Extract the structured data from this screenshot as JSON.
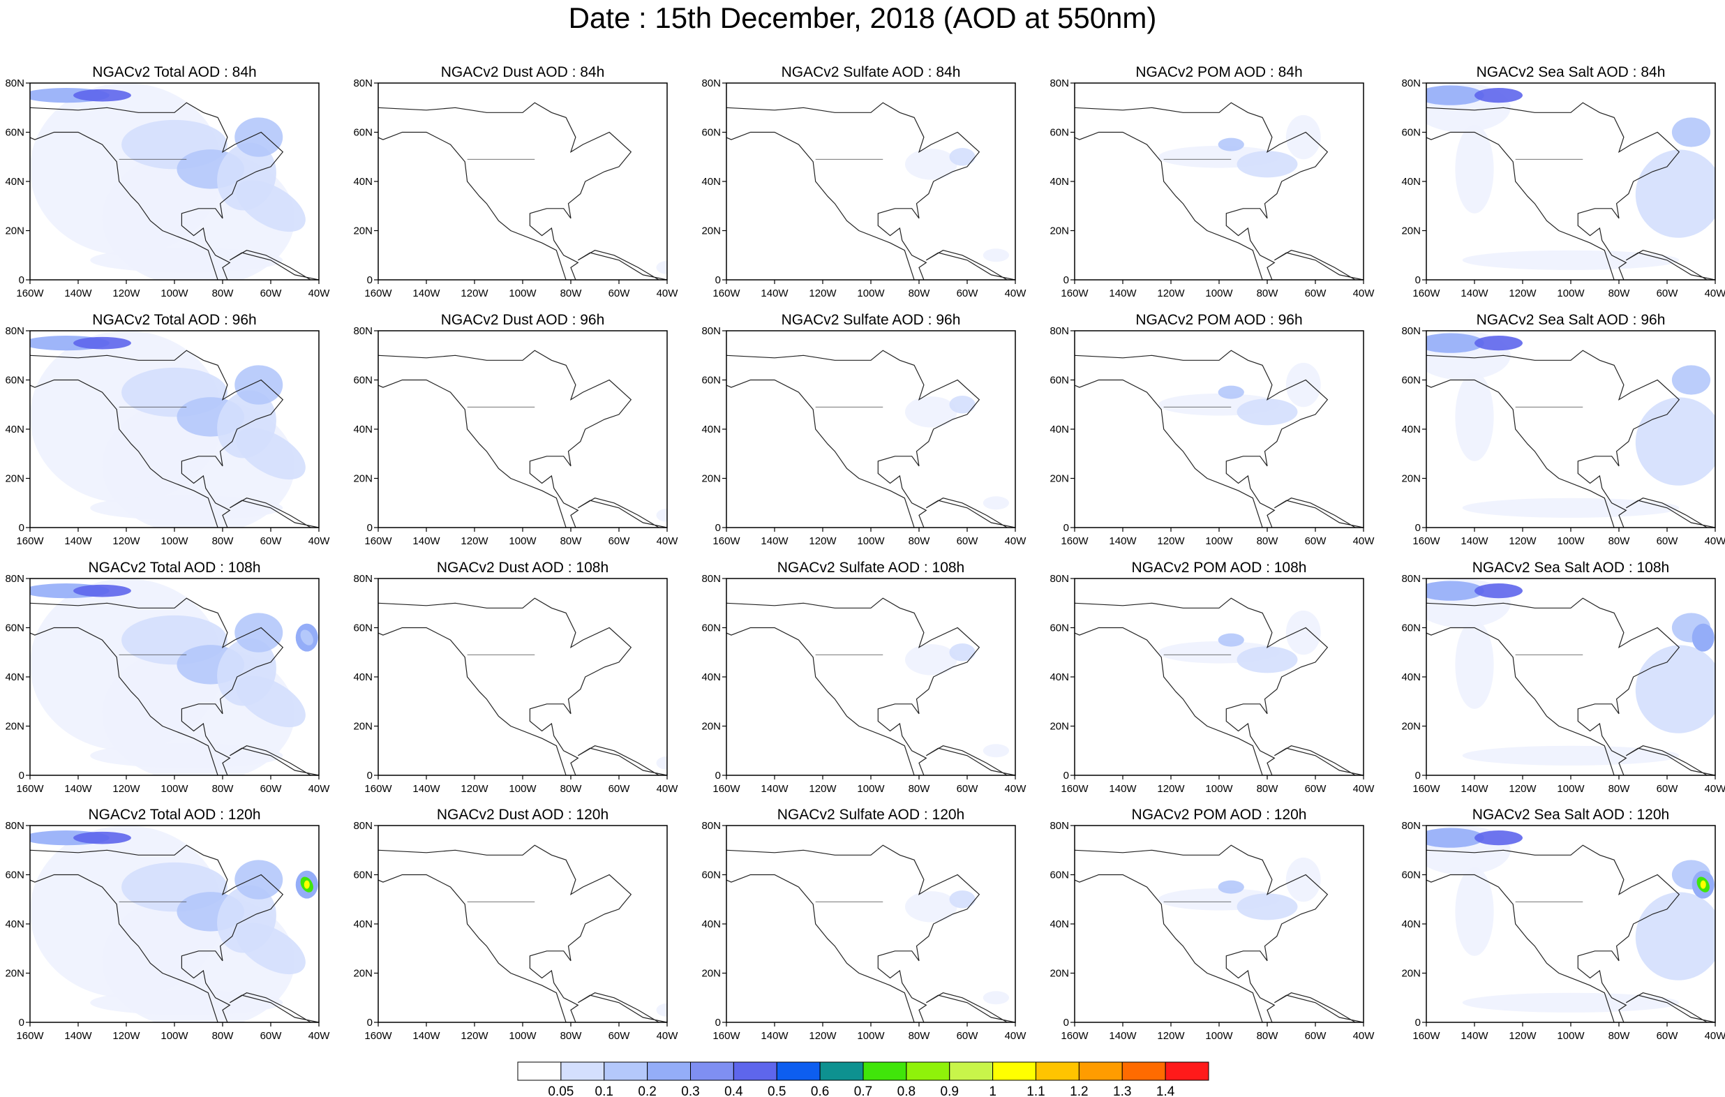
{
  "figure": {
    "title": "Date : 15th December, 2018 (AOD at 550nm)"
  },
  "panels": [
    {
      "title": "NGACv2 Total AOD : 84h",
      "field": "total",
      "hour": 84
    },
    {
      "title": "NGACv2 Dust AOD : 84h",
      "field": "dust",
      "hour": 84
    },
    {
      "title": "NGACv2 Sulfate AOD : 84h",
      "field": "sulfate",
      "hour": 84
    },
    {
      "title": "NGACv2 POM AOD : 84h",
      "field": "pom",
      "hour": 84
    },
    {
      "title": "NGACv2 Sea Salt AOD : 84h",
      "field": "seasalt",
      "hour": 84
    },
    {
      "title": "NGACv2 Total AOD : 96h",
      "field": "total",
      "hour": 96
    },
    {
      "title": "NGACv2 Dust AOD : 96h",
      "field": "dust",
      "hour": 96
    },
    {
      "title": "NGACv2 Sulfate AOD : 96h",
      "field": "sulfate",
      "hour": 96
    },
    {
      "title": "NGACv2 POM AOD : 96h",
      "field": "pom",
      "hour": 96
    },
    {
      "title": "NGACv2 Sea Salt AOD : 96h",
      "field": "seasalt",
      "hour": 96
    },
    {
      "title": "NGACv2 Total AOD : 108h",
      "field": "total",
      "hour": 108
    },
    {
      "title": "NGACv2 Dust AOD : 108h",
      "field": "dust",
      "hour": 108
    },
    {
      "title": "NGACv2 Sulfate AOD : 108h",
      "field": "sulfate",
      "hour": 108
    },
    {
      "title": "NGACv2 POM AOD : 108h",
      "field": "pom",
      "hour": 108
    },
    {
      "title": "NGACv2 Sea Salt AOD : 108h",
      "field": "seasalt",
      "hour": 108
    },
    {
      "title": "NGACv2 Total AOD : 120h",
      "field": "total",
      "hour": 120
    },
    {
      "title": "NGACv2 Dust AOD : 120h",
      "field": "dust",
      "hour": 120
    },
    {
      "title": "NGACv2 Sulfate AOD : 120h",
      "field": "sulfate",
      "hour": 120
    },
    {
      "title": "NGACv2 POM AOD : 120h",
      "field": "pom",
      "hour": 120
    },
    {
      "title": "NGACv2 Sea Salt  AOD : 120h",
      "field": "seasalt",
      "hour": 120
    }
  ],
  "axes": {
    "lon_range": [
      -160,
      -40
    ],
    "lat_range": [
      0,
      80
    ],
    "x_ticks": [
      "160W",
      "140W",
      "120W",
      "100W",
      "80W",
      "60W",
      "40W"
    ],
    "y_ticks": [
      "0",
      "20N",
      "40N",
      "60N",
      "80N"
    ]
  },
  "colorbar": {
    "labels": [
      "0.05",
      "0.1",
      "0.2",
      "0.3",
      "0.4",
      "0.5",
      "0.6",
      "0.7",
      "0.8",
      "0.9",
      "1",
      "1.1",
      "1.2",
      "1.3",
      "1.4"
    ],
    "colors": [
      "#ffffff",
      "#d4dffd",
      "#b4c8fb",
      "#94adf8",
      "#7f8ff2",
      "#5e66ec",
      "#0d5ef0",
      "#0e9190",
      "#40e50a",
      "#8ff20a",
      "#c8f54a",
      "#ffff00",
      "#ffc400",
      "#ff9c00",
      "#ff6b00",
      "#ff1a1a"
    ]
  },
  "levels": {
    "very_low": "#eef2fe",
    "low": "#d4dffd",
    "moderate": "#b4c8fb",
    "high": "#94adf8",
    "very_high": "#7f8ff2",
    "extreme": "#5e66ec",
    "peak_green": "#40e50a",
    "peak_yellow": "#ffff00"
  }
}
